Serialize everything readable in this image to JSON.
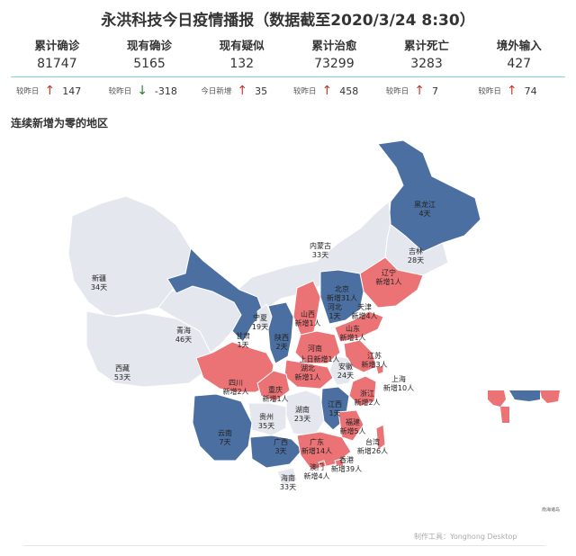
{
  "title": "永洪科技今日疫情播报（数据截至2020/3/24 8:30）",
  "stats": [
    {
      "label": "累计确诊",
      "value": "81747",
      "delta_label": "较昨日",
      "delta_dir": "up",
      "delta": "147"
    },
    {
      "label": "现有确诊",
      "value": "5165",
      "delta_label": "较昨日",
      "delta_dir": "down",
      "delta": "-318"
    },
    {
      "label": "现有疑似",
      "value": "132",
      "delta_label": "今日新增",
      "delta_dir": "up",
      "delta": "35"
    },
    {
      "label": "累计治愈",
      "value": "73299",
      "delta_label": "较昨日",
      "delta_dir": "up",
      "delta": "458"
    },
    {
      "label": "累计死亡",
      "value": "3283",
      "delta_label": "较昨日",
      "delta_dir": "up",
      "delta": "7"
    },
    {
      "label": "境外输入",
      "value": "427",
      "delta_label": "较昨日",
      "delta_dir": "up",
      "delta": "74"
    }
  ],
  "section_title": "连续新增为零的地区",
  "colors": {
    "zero_long": "#e4e8ee",
    "zero_short": "#4a6fa0",
    "new_cases": "#ec7375",
    "hubei": "#ec7375",
    "border": "#ffffff"
  },
  "regions": [
    {
      "id": "heilongjiang",
      "name": "黑龙江",
      "text": "4天",
      "status": "zero_short"
    },
    {
      "id": "jilin",
      "name": "吉林",
      "text": "28天",
      "status": "zero_long"
    },
    {
      "id": "liaoning",
      "name": "辽宁",
      "text": "新增1人",
      "status": "new_cases"
    },
    {
      "id": "neimenggu",
      "name": "内蒙古",
      "text": "33天",
      "status": "zero_long"
    },
    {
      "id": "xinjiang",
      "name": "新疆",
      "text": "34天",
      "status": "zero_long"
    },
    {
      "id": "xizang",
      "name": "西藏",
      "text": "53天",
      "status": "zero_long"
    },
    {
      "id": "qinghai",
      "name": "青海",
      "text": "46天",
      "status": "zero_long"
    },
    {
      "id": "gansu",
      "name": "甘肃",
      "text": "1天",
      "status": "zero_short"
    },
    {
      "id": "ningxia",
      "name": "宁夏",
      "text": "19天",
      "status": "zero_long"
    },
    {
      "id": "shaanxi",
      "name": "陕西",
      "text": "2天",
      "status": "zero_short"
    },
    {
      "id": "shanxi",
      "name": "山西",
      "text": "新增1人",
      "status": "new_cases"
    },
    {
      "id": "beijing",
      "name": "北京",
      "text": "新增31人",
      "status": "new_cases"
    },
    {
      "id": "tianjin",
      "name": "天津",
      "text": "新增4人",
      "status": "new_cases"
    },
    {
      "id": "hebei",
      "name": "河北",
      "text": "1天",
      "status": "zero_short"
    },
    {
      "id": "shandong",
      "name": "山东",
      "text": "新增1人",
      "status": "new_cases"
    },
    {
      "id": "henan",
      "name": "河南",
      "text": "",
      "status": "new_cases"
    },
    {
      "id": "jiangsu",
      "name": "江苏",
      "text": "新增3人",
      "status": "new_cases"
    },
    {
      "id": "shanghai",
      "name": "上海",
      "text": "新增10人",
      "status": "new_cases"
    },
    {
      "id": "anhui",
      "name": "安徽",
      "text": "24天",
      "status": "zero_long"
    },
    {
      "id": "hubei",
      "name": "湖北",
      "text": "新增1人",
      "status": "new_cases"
    },
    {
      "id": "sichuan",
      "name": "四川",
      "text": "新增2人",
      "status": "new_cases"
    },
    {
      "id": "chongqing",
      "name": "重庆",
      "text": "新增1人",
      "status": "new_cases"
    },
    {
      "id": "zhejiang",
      "name": "浙江",
      "text": "新增2人",
      "status": "new_cases"
    },
    {
      "id": "jiangxi",
      "name": "江西",
      "text": "1天",
      "status": "zero_short"
    },
    {
      "id": "hunan",
      "name": "湖南",
      "text": "23天",
      "status": "zero_long"
    },
    {
      "id": "guizhou",
      "name": "贵州",
      "text": "35天",
      "status": "zero_long"
    },
    {
      "id": "yunnan",
      "name": "云南",
      "text": "7天",
      "status": "zero_short"
    },
    {
      "id": "guangxi",
      "name": "广西",
      "text": "3天",
      "status": "zero_short"
    },
    {
      "id": "guangdong",
      "name": "广东",
      "text": "新增14人",
      "status": "new_cases"
    },
    {
      "id": "fujian",
      "name": "福建",
      "text": "新增5人",
      "status": "new_cases"
    },
    {
      "id": "taiwan",
      "name": "台湾",
      "text": "新增26人",
      "status": "new_cases"
    },
    {
      "id": "hongkong",
      "name": "香港",
      "text": "新增39人",
      "status": "new_cases"
    },
    {
      "id": "macau",
      "name": "澳门",
      "text": "新增4人",
      "status": "new_cases"
    },
    {
      "id": "hainan",
      "name": "海南",
      "text": "33天",
      "status": "zero_long"
    }
  ],
  "extra_label": "上日新增1人",
  "inset_label": "南海诸岛",
  "footer": "制作工具：Yonghong Desktop"
}
